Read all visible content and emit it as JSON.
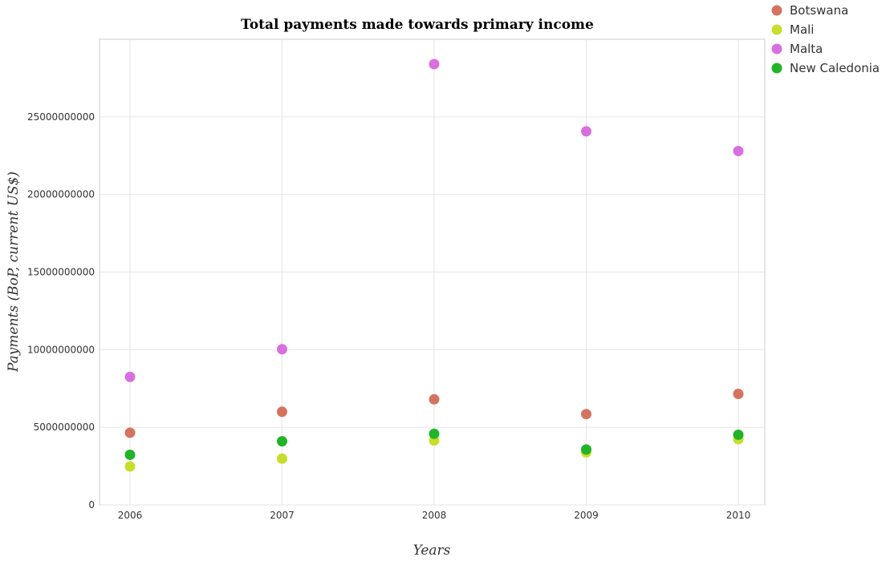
{
  "chart_data": {
    "type": "scatter",
    "title": "Total payments made towards primary income",
    "xlabel": "Years",
    "ylabel": "Payments (BoP, current US$)",
    "categories": [
      "2006",
      "2007",
      "2008",
      "2009",
      "2010"
    ],
    "ylim": [
      0,
      30000000000
    ],
    "yticks": [
      0,
      5000000000,
      10000000000,
      15000000000,
      20000000000,
      25000000000
    ],
    "ytick_labels": [
      "0",
      "5000000000",
      "10000000000",
      "15000000000",
      "20000000000",
      "25000000000"
    ],
    "grid": true,
    "legend_position": "top-right",
    "series": [
      {
        "name": "Botswana",
        "color": "#d4735e",
        "values": [
          4650000000,
          6000000000,
          6800000000,
          5850000000,
          7150000000
        ]
      },
      {
        "name": "Mali",
        "color": "#c7de2c",
        "values": [
          2480000000,
          2980000000,
          4150000000,
          3380000000,
          4230000000
        ]
      },
      {
        "name": "Malta",
        "color": "#d86fe0",
        "values": [
          8250000000,
          10030000000,
          28400000000,
          24070000000,
          22800000000
        ]
      },
      {
        "name": "New Caledonia",
        "color": "#22b428",
        "values": [
          3230000000,
          4100000000,
          4580000000,
          3570000000,
          4520000000
        ]
      }
    ]
  }
}
